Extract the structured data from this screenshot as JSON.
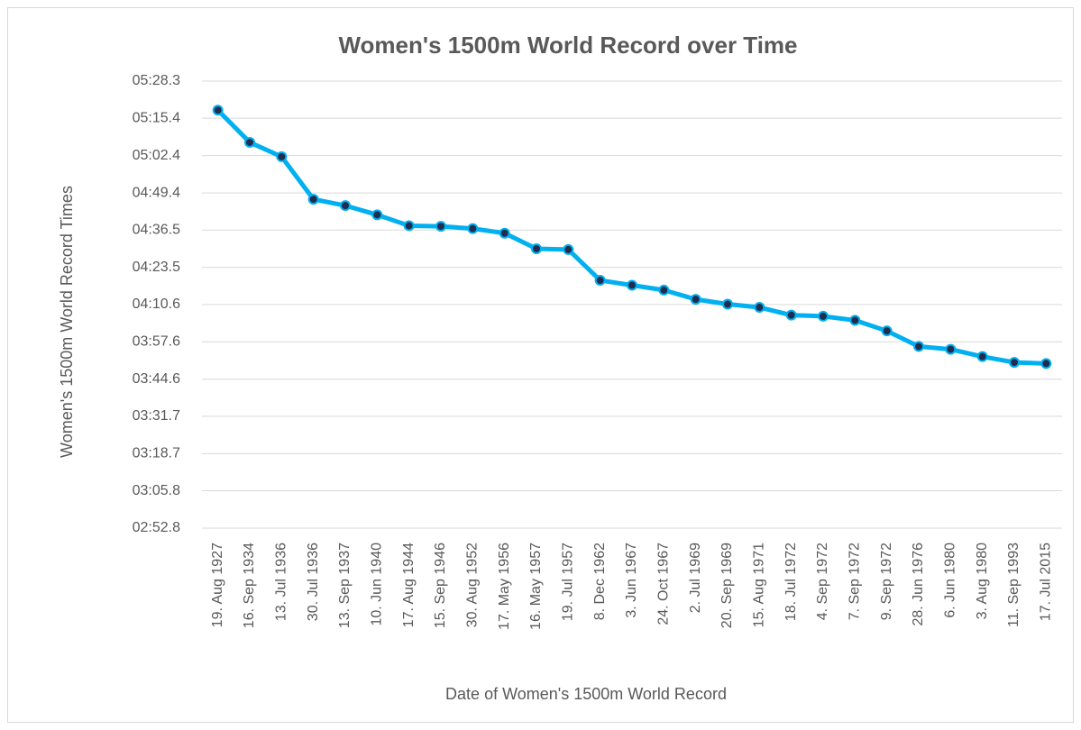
{
  "chart_data": {
    "type": "line",
    "title": "Women's 1500m World Record over Time",
    "x_label": "Date of Women's 1500m World Record",
    "y_label": "Women's 1500m World Record Times",
    "categories": [
      "19. Aug 1927",
      "16. Sep 1934",
      "13. Jul 1936",
      "30. Jul 1936",
      "13. Sep 1937",
      "10. Jun 1940",
      "17. Aug 1944",
      "15. Sep 1946",
      "30. Aug 1952",
      "17. May 1956",
      "16. May 1957",
      "19. Jul 1957",
      "8. Dec 1962",
      "3. Jun 1967",
      "24. Oct 1967",
      "2. Jul 1969",
      "20. Sep 1969",
      "15. Aug 1971",
      "18. Jul 1972",
      "4. Sep 1972",
      "7. Sep 1972",
      "9. Sep 1972",
      "28. Jun 1976",
      "6. Jun 1980",
      "3. Aug 1980",
      "11. Sep 1993",
      "17. Jul 2015"
    ],
    "series": [
      {
        "name": "Women's 1500m World Record Times",
        "color": "#00b0f0",
        "marker_color": "#1f2d50",
        "values": [
          318.2,
          307.0,
          302.0,
          287.2,
          285.0,
          281.8,
          278.0,
          277.8,
          277.0,
          275.4,
          270.0,
          269.7,
          259.0,
          257.3,
          255.6,
          252.4,
          250.7,
          249.6,
          246.9,
          246.5,
          245.1,
          241.4,
          236.0,
          235.0,
          232.47,
          230.46,
          230.07
        ]
      }
    ],
    "ylim": [
      172.8,
      328.3
    ],
    "yticks": [
      {
        "value": 172.8,
        "label": "02:52.8"
      },
      {
        "value": 185.8,
        "label": "03:05.8"
      },
      {
        "value": 198.7,
        "label": "03:18.7"
      },
      {
        "value": 211.7,
        "label": "03:31.7"
      },
      {
        "value": 224.6,
        "label": "03:44.6"
      },
      {
        "value": 237.6,
        "label": "03:57.6"
      },
      {
        "value": 250.6,
        "label": "04:10.6"
      },
      {
        "value": 263.5,
        "label": "04:23.5"
      },
      {
        "value": 276.5,
        "label": "04:36.5"
      },
      {
        "value": 289.4,
        "label": "04:49.4"
      },
      {
        "value": 302.4,
        "label": "05:02.4"
      },
      {
        "value": 315.4,
        "label": "05:15.4"
      },
      {
        "value": 328.3,
        "label": "05:28.3"
      }
    ],
    "grid": true
  }
}
